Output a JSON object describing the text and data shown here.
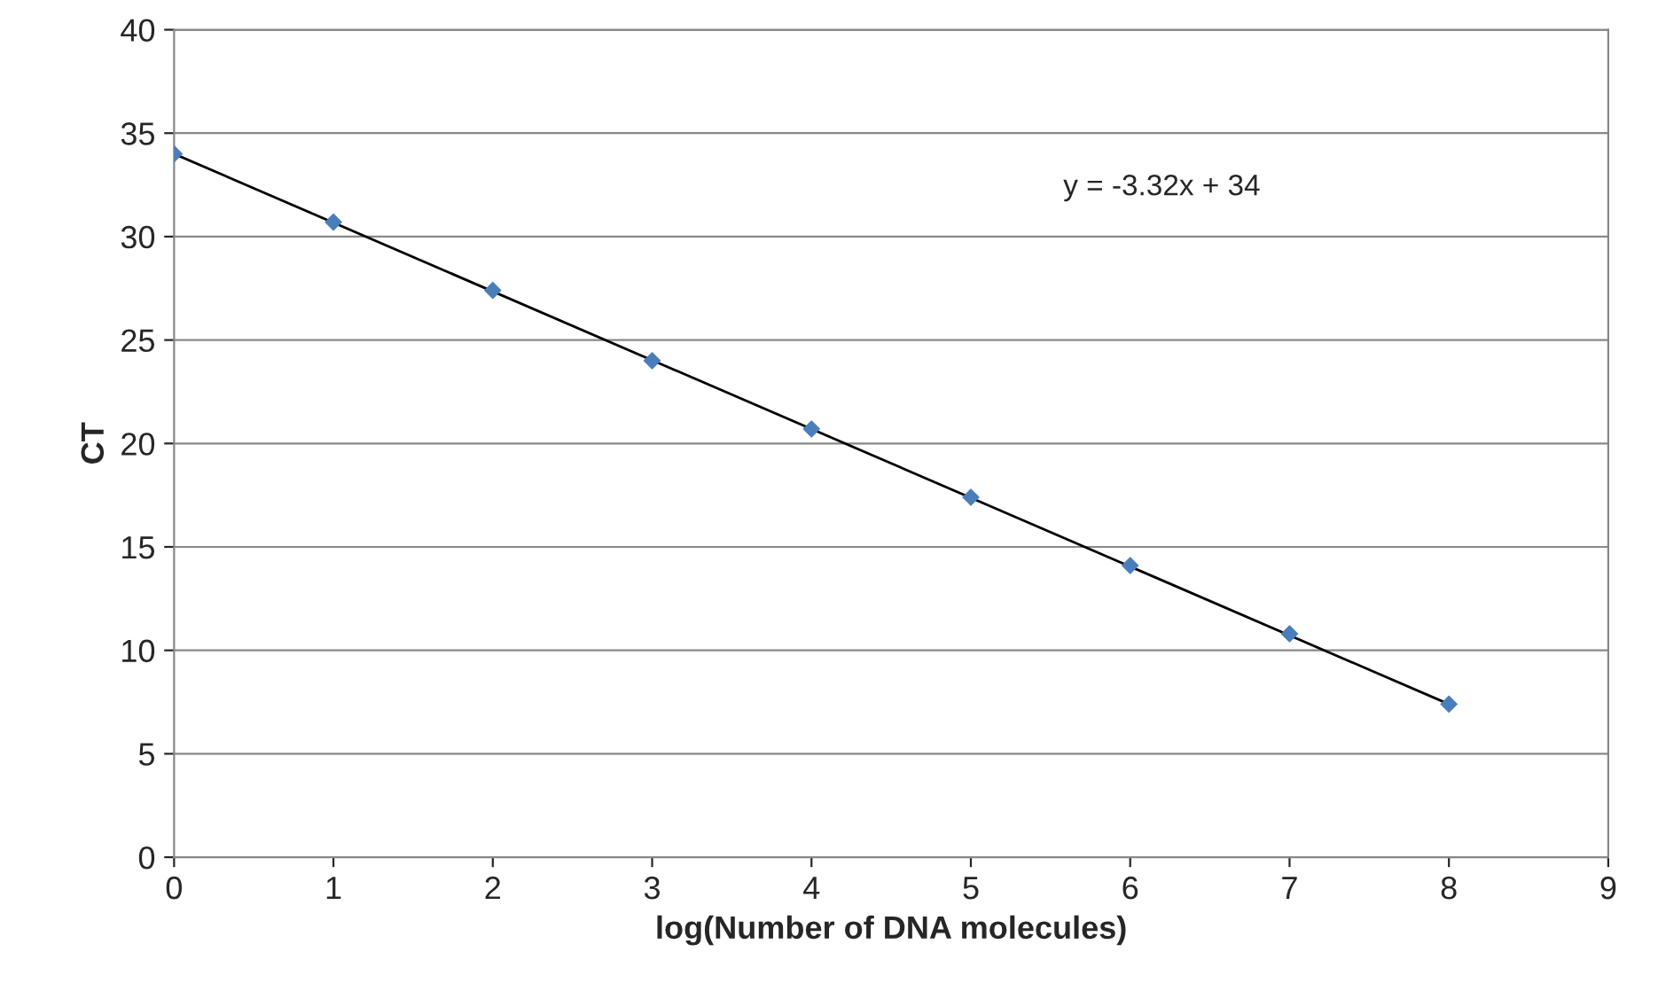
{
  "chart_data": {
    "type": "scatter",
    "xlabel": "log(Number of DNA molecules)",
    "ylabel": "CT",
    "series": [
      {
        "color": "#4a7ebb",
        "marker": "diamond",
        "x": [
          0,
          1,
          2,
          3,
          4,
          5,
          6,
          7,
          8
        ],
        "values": [
          34,
          30.7,
          27.4,
          24.0,
          20.7,
          17.4,
          14.1,
          10.8,
          7.4
        ]
      },
      {
        "type": "line",
        "color": "#000000",
        "marker": "none",
        "line_style": "solid",
        "x": [
          0,
          8
        ],
        "values": [
          34,
          7.4
        ]
      }
    ],
    "annotations": [
      "y = -3.32x + 34"
    ],
    "xlim": [
      0,
      9
    ],
    "xticks": [
      0,
      1,
      2,
      3,
      4,
      5,
      6,
      7,
      8,
      9
    ],
    "ylim": [
      0,
      40
    ],
    "yticks": [
      0,
      5,
      10,
      15,
      20,
      25,
      30,
      35,
      40
    ],
    "grid": "y",
    "legend": false
  }
}
